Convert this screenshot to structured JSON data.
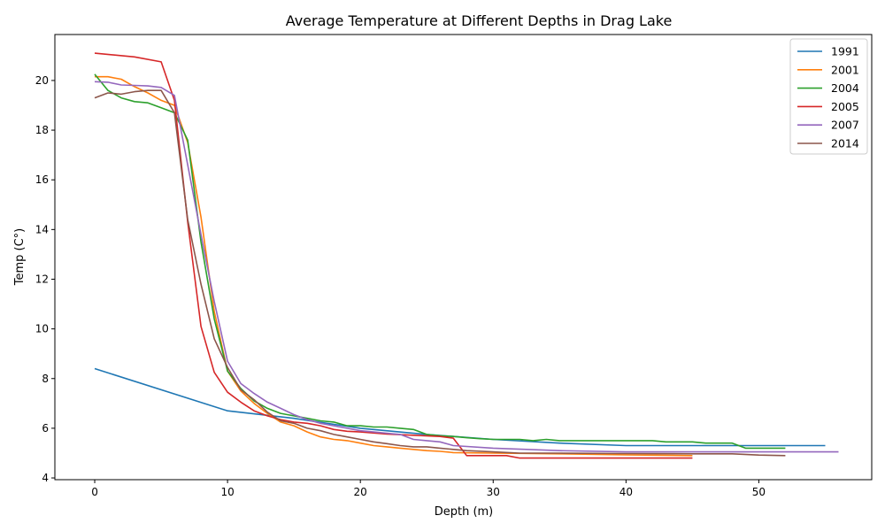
{
  "chart_data": {
    "type": "line",
    "title": "Average Temperature at Different Depths in Drag Lake",
    "xlabel": "Depth (m)",
    "ylabel": "Temp (C°)",
    "xlim": [
      -3,
      58.5
    ],
    "ylim": [
      3.93,
      21.85
    ],
    "xticks": [
      0,
      10,
      20,
      30,
      40,
      50
    ],
    "yticks": [
      4,
      6,
      8,
      10,
      12,
      14,
      16,
      18,
      20
    ],
    "grid": false,
    "legend": "top-right",
    "series": [
      {
        "name": "1991",
        "color": "#1f77b4",
        "points": [
          [
            0,
            8.4
          ],
          [
            10,
            6.7
          ],
          [
            15,
            6.4
          ],
          [
            20,
            6.0
          ],
          [
            25,
            5.75
          ],
          [
            30,
            5.55
          ],
          [
            35,
            5.4
          ],
          [
            40,
            5.3
          ],
          [
            45,
            5.3
          ],
          [
            50,
            5.3
          ],
          [
            55,
            5.3
          ]
        ]
      },
      {
        "name": "2001",
        "color": "#ff7f0e",
        "points": [
          [
            0,
            20.15
          ],
          [
            1,
            20.15
          ],
          [
            2,
            20.05
          ],
          [
            3,
            19.75
          ],
          [
            4,
            19.5
          ],
          [
            5,
            19.2
          ],
          [
            6,
            19.0
          ],
          [
            7,
            17.5
          ],
          [
            8,
            14.5
          ],
          [
            9,
            10.7
          ],
          [
            10,
            8.3
          ],
          [
            11,
            7.5
          ],
          [
            12,
            7.0
          ],
          [
            13,
            6.6
          ],
          [
            14,
            6.25
          ],
          [
            15,
            6.1
          ],
          [
            16,
            5.85
          ],
          [
            17,
            5.65
          ],
          [
            18,
            5.55
          ],
          [
            19,
            5.5
          ],
          [
            20,
            5.4
          ],
          [
            21,
            5.3
          ],
          [
            22,
            5.25
          ],
          [
            23,
            5.2
          ],
          [
            24,
            5.15
          ],
          [
            25,
            5.1
          ],
          [
            26,
            5.07
          ],
          [
            27,
            5.02
          ],
          [
            30,
            5.0
          ],
          [
            35,
            4.97
          ],
          [
            40,
            4.93
          ],
          [
            45,
            4.9
          ]
        ]
      },
      {
        "name": "2004",
        "color": "#2ca02c",
        "points": [
          [
            0,
            20.25
          ],
          [
            1,
            19.6
          ],
          [
            2,
            19.3
          ],
          [
            3,
            19.15
          ],
          [
            4,
            19.1
          ],
          [
            5,
            18.9
          ],
          [
            6,
            18.7
          ],
          [
            7,
            17.6
          ],
          [
            8,
            13.5
          ],
          [
            9,
            10.4
          ],
          [
            10,
            8.3
          ],
          [
            11,
            7.6
          ],
          [
            12,
            7.1
          ],
          [
            13,
            6.8
          ],
          [
            14,
            6.6
          ],
          [
            15,
            6.5
          ],
          [
            16,
            6.4
          ],
          [
            17,
            6.3
          ],
          [
            18,
            6.25
          ],
          [
            19,
            6.1
          ],
          [
            20,
            6.1
          ],
          [
            21,
            6.05
          ],
          [
            22,
            6.05
          ],
          [
            23,
            6.0
          ],
          [
            24,
            5.95
          ],
          [
            25,
            5.75
          ],
          [
            26,
            5.7
          ],
          [
            27,
            5.67
          ],
          [
            28,
            5.62
          ],
          [
            29,
            5.58
          ],
          [
            30,
            5.55
          ],
          [
            32,
            5.55
          ],
          [
            33,
            5.5
          ],
          [
            34,
            5.55
          ],
          [
            35,
            5.5
          ],
          [
            40,
            5.5
          ],
          [
            42,
            5.5
          ],
          [
            43,
            5.45
          ],
          [
            45,
            5.45
          ],
          [
            46,
            5.4
          ],
          [
            48,
            5.4
          ],
          [
            49,
            5.2
          ],
          [
            51,
            5.2
          ],
          [
            52,
            5.2
          ]
        ]
      },
      {
        "name": "2005",
        "color": "#d62728",
        "points": [
          [
            0,
            21.1
          ],
          [
            3,
            20.95
          ],
          [
            5,
            20.75
          ],
          [
            6,
            19.2
          ],
          [
            7,
            14.3
          ],
          [
            8,
            10.1
          ],
          [
            9,
            8.25
          ],
          [
            10,
            7.45
          ],
          [
            11,
            7.05
          ],
          [
            12,
            6.7
          ],
          [
            13,
            6.5
          ],
          [
            14,
            6.35
          ],
          [
            15,
            6.25
          ],
          [
            16,
            6.2
          ],
          [
            17,
            6.1
          ],
          [
            18,
            5.95
          ],
          [
            19,
            5.88
          ],
          [
            20,
            5.85
          ],
          [
            22,
            5.77
          ],
          [
            24,
            5.72
          ],
          [
            26,
            5.67
          ],
          [
            27,
            5.6
          ],
          [
            28,
            4.9
          ],
          [
            29,
            4.9
          ],
          [
            31,
            4.9
          ],
          [
            32,
            4.8
          ],
          [
            45,
            4.8
          ]
        ]
      },
      {
        "name": "2007",
        "color": "#9467bd",
        "points": [
          [
            0,
            19.95
          ],
          [
            1,
            19.93
          ],
          [
            2,
            19.82
          ],
          [
            3,
            19.8
          ],
          [
            4,
            19.78
          ],
          [
            5,
            19.72
          ],
          [
            6,
            19.4
          ],
          [
            7,
            16.6
          ],
          [
            8,
            13.8
          ],
          [
            9,
            11.1
          ],
          [
            10,
            8.7
          ],
          [
            11,
            7.8
          ],
          [
            12,
            7.4
          ],
          [
            13,
            7.05
          ],
          [
            14,
            6.8
          ],
          [
            15,
            6.55
          ],
          [
            16,
            6.35
          ],
          [
            17,
            6.2
          ],
          [
            18,
            6.1
          ],
          [
            19,
            6.0
          ],
          [
            20,
            5.9
          ],
          [
            21,
            5.85
          ],
          [
            22,
            5.8
          ],
          [
            23,
            5.75
          ],
          [
            24,
            5.55
          ],
          [
            25,
            5.5
          ],
          [
            26,
            5.45
          ],
          [
            27,
            5.3
          ],
          [
            30,
            5.2
          ],
          [
            35,
            5.1
          ],
          [
            40,
            5.05
          ],
          [
            45,
            5.05
          ],
          [
            50,
            5.05
          ],
          [
            52,
            5.05
          ],
          [
            56,
            5.05
          ]
        ]
      },
      {
        "name": "2014",
        "color": "#8c564b",
        "points": [
          [
            0,
            19.3
          ],
          [
            1,
            19.5
          ],
          [
            2,
            19.45
          ],
          [
            3,
            19.55
          ],
          [
            4,
            19.6
          ],
          [
            5,
            19.6
          ],
          [
            6,
            18.7
          ],
          [
            7,
            14.4
          ],
          [
            8,
            11.8
          ],
          [
            9,
            9.6
          ],
          [
            10,
            8.45
          ],
          [
            11,
            7.55
          ],
          [
            12,
            7.15
          ],
          [
            13,
            6.65
          ],
          [
            14,
            6.3
          ],
          [
            15,
            6.2
          ],
          [
            16,
            6.0
          ],
          [
            17,
            5.9
          ],
          [
            18,
            5.75
          ],
          [
            19,
            5.65
          ],
          [
            20,
            5.55
          ],
          [
            21,
            5.45
          ],
          [
            22,
            5.38
          ],
          [
            23,
            5.3
          ],
          [
            24,
            5.25
          ],
          [
            25,
            5.25
          ],
          [
            26,
            5.2
          ],
          [
            27,
            5.15
          ],
          [
            28,
            5.1
          ],
          [
            30,
            5.05
          ],
          [
            32,
            5.0
          ],
          [
            35,
            5.0
          ],
          [
            40,
            4.98
          ],
          [
            45,
            4.97
          ],
          [
            48,
            4.97
          ],
          [
            50,
            4.92
          ],
          [
            52,
            4.9
          ]
        ]
      }
    ]
  }
}
